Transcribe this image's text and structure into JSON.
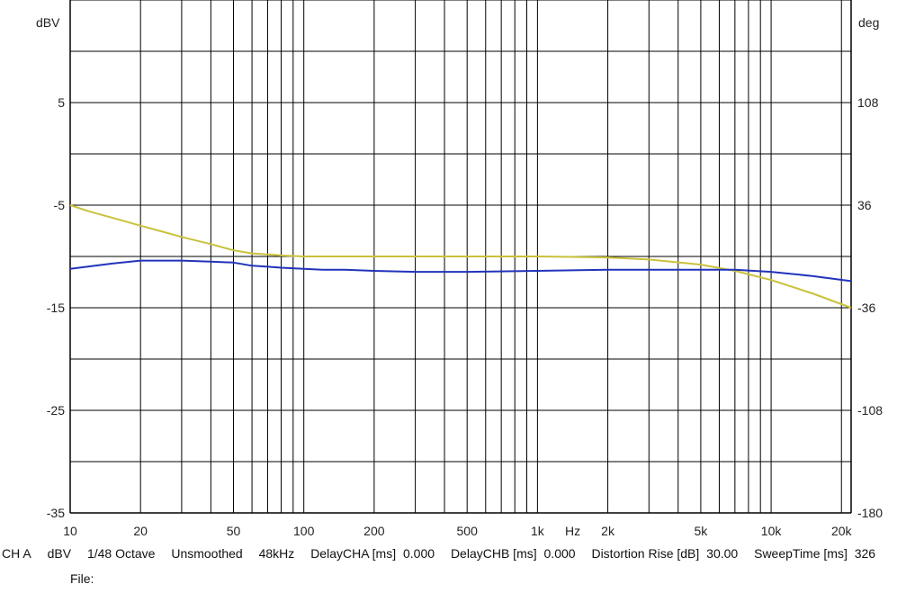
{
  "chart_data": {
    "type": "line",
    "xscale": "log",
    "xlim": [
      10,
      22000
    ],
    "ylim_left": [
      -35,
      15
    ],
    "ylim_right": [
      -180,
      180
    ],
    "left_unit": "dBV",
    "right_unit": "deg",
    "unit_hz": "Hz",
    "x_tick_labels": [
      "10",
      "20",
      "50",
      "100",
      "200",
      "500",
      "1k",
      "2k",
      "5k",
      "10k",
      "20k"
    ],
    "x_tick_values": [
      10,
      20,
      50,
      100,
      200,
      500,
      1000,
      2000,
      5000,
      10000,
      20000
    ],
    "y_left_tick_labels": [
      "5",
      "-5",
      "-15",
      "-25",
      "-35"
    ],
    "y_left_tick_values": [
      5,
      -5,
      -15,
      -25,
      -35
    ],
    "y_right_tick_labels": [
      "108",
      "36",
      "-36",
      "-108",
      "-180"
    ],
    "y_right_tick_values": [
      108,
      36,
      -36,
      -108,
      -180
    ],
    "grid": true,
    "series": [
      {
        "color": "#c9c23c",
        "axis": "left",
        "x": [
          10,
          12,
          15,
          20,
          25,
          30,
          40,
          50,
          60,
          70,
          80,
          100,
          120,
          150,
          200,
          300,
          500,
          1000,
          2000,
          3000,
          5000,
          7000,
          10000,
          15000,
          22000
        ],
        "y": [
          -5.0,
          -5.6,
          -6.2,
          -7.0,
          -7.6,
          -8.1,
          -8.8,
          -9.4,
          -9.7,
          -9.8,
          -9.9,
          -10.0,
          -10.0,
          -10.0,
          -10.0,
          -10.0,
          -10.0,
          -10.0,
          -10.1,
          -10.3,
          -10.8,
          -11.4,
          -12.3,
          -13.6,
          -15.0
        ]
      },
      {
        "color": "#2233bb",
        "axis": "left",
        "x": [
          10,
          15,
          20,
          30,
          40,
          50,
          60,
          70,
          80,
          100,
          120,
          150,
          200,
          300,
          500,
          1000,
          2000,
          5000,
          7000,
          10000,
          15000,
          22000
        ],
        "y": [
          -11.2,
          -10.7,
          -10.4,
          -10.4,
          -10.5,
          -10.6,
          -10.9,
          -11.0,
          -11.1,
          -11.2,
          -11.3,
          -11.3,
          -11.4,
          -11.5,
          -11.5,
          -11.4,
          -11.3,
          -11.3,
          -11.3,
          -11.5,
          -11.9,
          -12.4
        ]
      }
    ]
  },
  "status": {
    "channel": "CH A",
    "unit": "dBV",
    "smoothing": "1/48 Octave",
    "mode": "Unsmoothed",
    "rate": "48kHz",
    "delay_a_label": "DelayCHA [ms]",
    "delay_a_value": "0.000",
    "delay_b_label": "DelayCHB [ms]",
    "delay_b_value": "0.000",
    "distortion_label": "Distortion Rise [dB]",
    "distortion_value": "30.00",
    "sweep_label": "SweepTime [ms]",
    "sweep_value": "326",
    "file_label": "File:"
  }
}
